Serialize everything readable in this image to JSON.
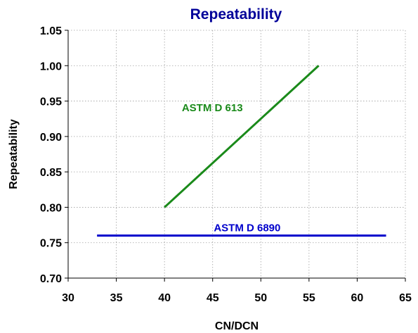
{
  "chart_data": {
    "type": "line",
    "title": "Repeatability",
    "xlabel": "CN/DCN",
    "ylabel": "Repeatability",
    "xlim": [
      30,
      65
    ],
    "ylim": [
      0.7,
      1.05
    ],
    "x_ticks": [
      "30",
      "35",
      "40",
      "45",
      "50",
      "55",
      "60",
      "65"
    ],
    "y_ticks": [
      "0.70",
      "0.75",
      "0.80",
      "0.85",
      "0.90",
      "0.95",
      "1.00",
      "1.05"
    ],
    "grid": true,
    "series": [
      {
        "name": "ASTM D 613",
        "color": "#1a8a1a",
        "points": [
          [
            40,
            0.8
          ],
          [
            56,
            1.0
          ]
        ]
      },
      {
        "name": "ASTM D 6890",
        "color": "#0000cc",
        "points": [
          [
            33,
            0.76
          ],
          [
            63,
            0.76
          ]
        ]
      }
    ],
    "title_color": "#000099"
  }
}
